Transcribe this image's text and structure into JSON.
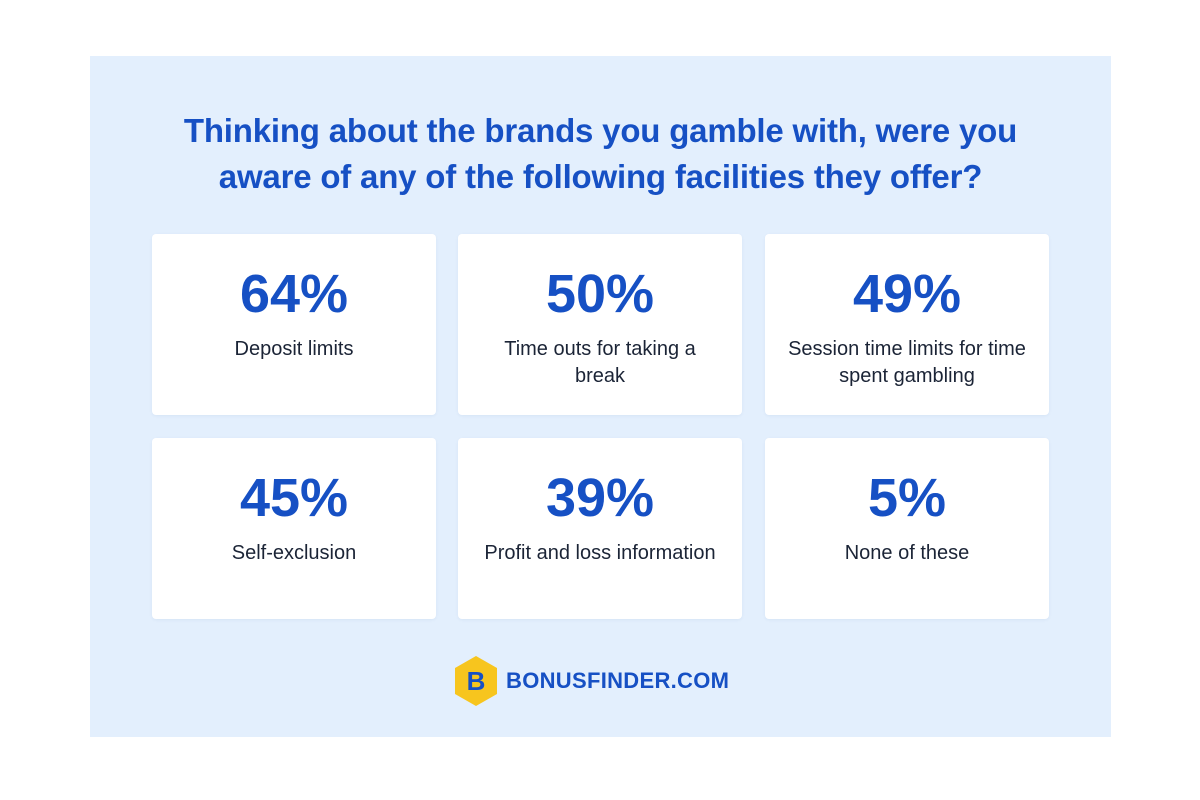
{
  "chart_data": {
    "type": "table",
    "title": "Thinking about the brands you gamble with, were you aware of any of the following facilities they offer?",
    "title_lines": [
      "Thinking about the brands you gamble with, were you",
      "aware of any of the following facilities they offer?"
    ],
    "unit": "%",
    "items": [
      {
        "value": 64,
        "display": "64%",
        "label": "Deposit limits"
      },
      {
        "value": 50,
        "display": "50%",
        "label": "Time outs for taking a break"
      },
      {
        "value": 49,
        "display": "49%",
        "label": "Session time limits for time spent gambling"
      },
      {
        "value": 45,
        "display": "45%",
        "label": "Self-exclusion"
      },
      {
        "value": 39,
        "display": "39%",
        "label": "Profit and loss information"
      },
      {
        "value": 5,
        "display": "5%",
        "label": "None of these"
      }
    ]
  },
  "branding": {
    "logo_letter": "B",
    "logo_icon": "hexagon-b-logo-icon",
    "name": "BONUSFINDER.COM"
  },
  "colors": {
    "panel_background": "#e3effd",
    "accent_blue": "#1650c4",
    "card_background": "#ffffff",
    "label_text": "#1b2436",
    "logo_yellow": "#f7c51e"
  }
}
